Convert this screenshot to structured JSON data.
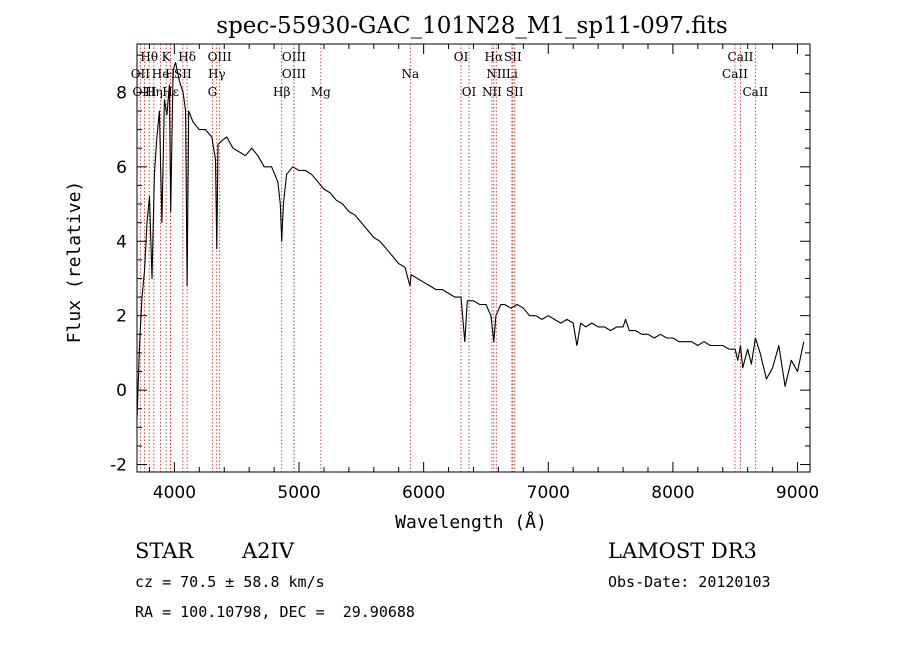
{
  "chart_data": {
    "type": "line",
    "title": "spec-55930-GAC_101N28_M1_sp11-097.fits",
    "xlabel": "Wavelength (Å)",
    "ylabel": "Flux (relative)",
    "xlim": [
      3700,
      9100
    ],
    "ylim": [
      -2.2,
      9.3
    ],
    "xticks": [
      4000,
      5000,
      6000,
      7000,
      8000,
      9000
    ],
    "yticks": [
      -2,
      0,
      2,
      4,
      6,
      8
    ],
    "line_color": "#000000",
    "marker_color": "#c0392b",
    "series": [
      {
        "name": "flux",
        "x": [
          3700,
          3720,
          3740,
          3760,
          3780,
          3800,
          3820,
          3840,
          3860,
          3880,
          3900,
          3920,
          3940,
          3960,
          3970,
          3990,
          4010,
          4040,
          4070,
          4090,
          4102,
          4115,
          4150,
          4200,
          4250,
          4300,
          4330,
          4340,
          4350,
          4380,
          4420,
          4470,
          4520,
          4570,
          4620,
          4670,
          4720,
          4780,
          4830,
          4850,
          4861,
          4875,
          4900,
          4950,
          5000,
          5050,
          5100,
          5150,
          5200,
          5250,
          5300,
          5350,
          5400,
          5450,
          5500,
          5550,
          5600,
          5650,
          5700,
          5750,
          5800,
          5850,
          5890,
          5900,
          5950,
          6000,
          6050,
          6100,
          6150,
          6200,
          6250,
          6300,
          6330,
          6350,
          6400,
          6450,
          6500,
          6540,
          6563,
          6580,
          6620,
          6650,
          6700,
          6750,
          6800,
          6850,
          6900,
          6950,
          7000,
          7050,
          7100,
          7150,
          7200,
          7230,
          7260,
          7300,
          7350,
          7400,
          7450,
          7500,
          7550,
          7600,
          7620,
          7650,
          7700,
          7750,
          7800,
          7850,
          7900,
          7950,
          8000,
          8050,
          8100,
          8150,
          8200,
          8250,
          8300,
          8350,
          8400,
          8450,
          8500,
          8520,
          8542,
          8560,
          8600,
          8630,
          8662,
          8700,
          8750,
          8800,
          8850,
          8900,
          8950,
          9000,
          9050
        ],
        "values": [
          -0.8,
          1.2,
          2.5,
          3.2,
          4.5,
          5.2,
          3.0,
          5.8,
          6.8,
          7.5,
          4.5,
          7.8,
          7.4,
          8.2,
          4.8,
          8.6,
          8.8,
          8.3,
          8.0,
          7.5,
          2.8,
          7.5,
          7.2,
          7.0,
          7.0,
          6.8,
          6.2,
          3.8,
          6.6,
          6.7,
          6.8,
          6.5,
          6.4,
          6.3,
          6.5,
          6.3,
          6.0,
          6.0,
          5.6,
          5.0,
          4.0,
          5.0,
          5.8,
          6.0,
          5.9,
          5.9,
          5.8,
          5.6,
          5.4,
          5.3,
          5.1,
          5.0,
          4.8,
          4.7,
          4.5,
          4.3,
          4.1,
          4.0,
          3.8,
          3.6,
          3.4,
          3.3,
          2.8,
          3.1,
          3.0,
          2.9,
          2.8,
          2.7,
          2.7,
          2.6,
          2.5,
          2.5,
          1.3,
          2.4,
          2.4,
          2.3,
          2.3,
          2.0,
          1.3,
          2.0,
          2.3,
          2.3,
          2.2,
          2.3,
          2.2,
          2.0,
          2.0,
          1.9,
          2.0,
          1.9,
          1.8,
          1.9,
          1.8,
          1.2,
          1.8,
          1.7,
          1.8,
          1.7,
          1.7,
          1.6,
          1.7,
          1.7,
          1.9,
          1.6,
          1.6,
          1.5,
          1.5,
          1.4,
          1.5,
          1.4,
          1.4,
          1.3,
          1.3,
          1.3,
          1.2,
          1.3,
          1.2,
          1.2,
          1.2,
          1.1,
          1.1,
          0.8,
          1.2,
          0.6,
          1.1,
          0.7,
          1.4,
          1.0,
          0.3,
          0.6,
          1.2,
          0.1,
          0.8,
          0.5,
          1.3
        ]
      }
    ],
    "line_markers": [
      {
        "label": "Hθ",
        "x": 3798,
        "row": 0
      },
      {
        "label": "K",
        "x": 3934,
        "row": 0
      },
      {
        "label": "Hδ",
        "x": 4102,
        "row": 0
      },
      {
        "label": "OIII",
        "x": 4363,
        "row": 0
      },
      {
        "label": "OIII",
        "x": 4959,
        "row": 0
      },
      {
        "label": "OI",
        "x": 6300,
        "row": 0
      },
      {
        "label": "Hα",
        "x": 6563,
        "row": 0
      },
      {
        "label": "SII",
        "x": 6716,
        "row": 0
      },
      {
        "label": "CaII",
        "x": 8542,
        "row": 0
      },
      {
        "label": "OII",
        "x": 3727,
        "row": 1
      },
      {
        "label": "He",
        "x": 3889,
        "row": 1
      },
      {
        "label": "H",
        "x": 3968,
        "row": 1
      },
      {
        "label": "SII",
        "x": 4068,
        "row": 1
      },
      {
        "label": "Hγ",
        "x": 4340,
        "row": 1
      },
      {
        "label": "OIII",
        "x": 4959,
        "row": 1
      },
      {
        "label": "Na",
        "x": 5893,
        "row": 1
      },
      {
        "label": "NII",
        "x": 6583,
        "row": 1
      },
      {
        "label": "Li",
        "x": 6708,
        "row": 1
      },
      {
        "label": "CaII",
        "x": 8498,
        "row": 1
      },
      {
        "label": "OIII",
        "x": 3760,
        "row": 2
      },
      {
        "label": "Hη",
        "x": 3835,
        "row": 2
      },
      {
        "label": "Hε",
        "x": 3970,
        "row": 2
      },
      {
        "label": "G",
        "x": 4305,
        "row": 2
      },
      {
        "label": "Hβ",
        "x": 4861,
        "row": 2
      },
      {
        "label": "Mg",
        "x": 5175,
        "row": 2
      },
      {
        "label": "OI",
        "x": 6364,
        "row": 2
      },
      {
        "label": "NII",
        "x": 6548,
        "row": 2
      },
      {
        "label": "SII",
        "x": 6731,
        "row": 2
      },
      {
        "label": "CaII",
        "x": 8662,
        "row": 2
      }
    ]
  },
  "info": {
    "object_class": "STAR",
    "subclass": "A2IV",
    "survey": "LAMOST DR3",
    "cz": "cz = 70.5 ± 58.8 km/s",
    "obs_date": "Obs-Date: 20120103",
    "coords": "RA = 100.10798, DEC =  29.90688"
  }
}
